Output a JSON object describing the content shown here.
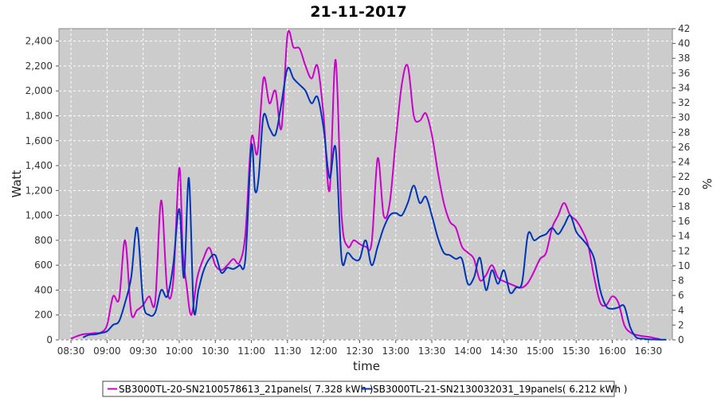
{
  "chart_data": {
    "type": "line",
    "title": "21-11-2017",
    "xlabel": "time",
    "ylabel": "Watt",
    "y2label": "%",
    "x_ticks": [
      "08:30",
      "09:00",
      "09:30",
      "10:00",
      "10:30",
      "11:00",
      "11:30",
      "12:00",
      "12:30",
      "13:00",
      "13:30",
      "14:00",
      "14:30",
      "15:00",
      "15:30",
      "16:00",
      "16:30"
    ],
    "xlim": [
      "08:20",
      "16:50"
    ],
    "ylim": [
      0,
      2500
    ],
    "y_ticks": [
      0,
      200,
      400,
      600,
      800,
      1000,
      1200,
      1400,
      1600,
      1800,
      2000,
      2200,
      2400
    ],
    "y_tick_labels": [
      "0",
      "200",
      "400",
      "600",
      "800",
      "1,000",
      "1,200",
      "1,400",
      "1,600",
      "1,800",
      "2,000",
      "2,200",
      "2,400"
    ],
    "y2lim": [
      0,
      42
    ],
    "y2_ticks": [
      0,
      2,
      4,
      6,
      8,
      10,
      12,
      14,
      16,
      18,
      20,
      22,
      24,
      26,
      28,
      30,
      32,
      34,
      36,
      38,
      40,
      42
    ],
    "grid": true,
    "legend_position": "bottom",
    "background_color": "#cccccc",
    "series": [
      {
        "name": "SB3000TL-20-SN2100578613_21panels( 7.328 kWh )",
        "color": "#cc00cc",
        "x": [
          "08:30",
          "08:35",
          "08:40",
          "08:45",
          "08:50",
          "08:55",
          "09:00",
          "09:05",
          "09:10",
          "09:15",
          "09:20",
          "09:25",
          "09:30",
          "09:35",
          "09:40",
          "09:45",
          "09:50",
          "09:55",
          "10:00",
          "10:03",
          "10:06",
          "10:10",
          "10:15",
          "10:20",
          "10:25",
          "10:30",
          "10:35",
          "10:40",
          "10:45",
          "10:50",
          "10:55",
          "11:00",
          "11:05",
          "11:10",
          "11:15",
          "11:20",
          "11:25",
          "11:30",
          "11:35",
          "11:40",
          "11:45",
          "11:50",
          "11:55",
          "12:00",
          "12:05",
          "12:10",
          "12:15",
          "12:20",
          "12:25",
          "12:30",
          "12:35",
          "12:40",
          "12:45",
          "12:50",
          "12:55",
          "13:00",
          "13:05",
          "13:10",
          "13:15",
          "13:20",
          "13:25",
          "13:30",
          "13:35",
          "13:40",
          "13:45",
          "13:50",
          "13:55",
          "14:00",
          "14:05",
          "14:10",
          "14:15",
          "14:20",
          "14:25",
          "14:30",
          "14:35",
          "14:40",
          "14:45",
          "14:50",
          "14:55",
          "15:00",
          "15:05",
          "15:10",
          "15:15",
          "15:20",
          "15:25",
          "15:30",
          "15:35",
          "15:40",
          "15:45",
          "15:50",
          "15:55",
          "16:00",
          "16:05",
          "16:10",
          "16:15",
          "16:20",
          "16:25",
          "16:30",
          "16:35",
          "16:40"
        ],
        "y": [
          10,
          30,
          45,
          50,
          55,
          60,
          120,
          350,
          330,
          800,
          220,
          240,
          280,
          350,
          310,
          1120,
          400,
          470,
          1380,
          700,
          450,
          200,
          500,
          650,
          740,
          600,
          560,
          600,
          650,
          620,
          850,
          1620,
          1500,
          2100,
          1900,
          2000,
          1700,
          2450,
          2350,
          2340,
          2200,
          2100,
          2200,
          1800,
          1200,
          2250,
          1000,
          750,
          800,
          770,
          750,
          780,
          1460,
          1000,
          1100,
          1600,
          2050,
          2200,
          1800,
          1760,
          1820,
          1650,
          1350,
          1100,
          950,
          900,
          750,
          700,
          650,
          480,
          520,
          600,
          500,
          470,
          450,
          430,
          420,
          460,
          550,
          650,
          700,
          900,
          1000,
          1100,
          1000,
          960,
          880,
          760,
          500,
          300,
          280,
          350,
          300,
          120,
          60,
          40,
          30,
          25,
          15,
          5
        ],
        "y2_pct": [
          0.2,
          0.5,
          0.8,
          0.9,
          0.9,
          1,
          2,
          5.9,
          5.5,
          13.4,
          3.7,
          4,
          4.7,
          5.9,
          5.2,
          18.8,
          6.7,
          7.9,
          23.2,
          11.8,
          7.6,
          3.4,
          8.4,
          10.9,
          12.4,
          10.1,
          9.4,
          10.1,
          10.9,
          10.4,
          14.3,
          27.2,
          25.2,
          35.3,
          31.9,
          33.6,
          28.6,
          41.2,
          39.5,
          39.3,
          37,
          35.3,
          37,
          30.2,
          20.2,
          37.8,
          16.8,
          12.6,
          13.4,
          12.9,
          12.6,
          13.1,
          24.5,
          16.8,
          18.5,
          26.9,
          34.4,
          37,
          30.2,
          29.6,
          30.6,
          27.7,
          22.7,
          18.5,
          16,
          15.1,
          12.6,
          11.8,
          10.9,
          8.1,
          8.7,
          10.1,
          8.4,
          7.9,
          7.6,
          7.2,
          7.1,
          7.7,
          9.2,
          10.9,
          11.8,
          15.1,
          16.8,
          18.5,
          16.8,
          16.1,
          14.8,
          12.8,
          8.4,
          5,
          4.7,
          5.9,
          5,
          2,
          1,
          0.7,
          0.5,
          0.4,
          0.3,
          0.1
        ]
      },
      {
        "name": "SB3000TL-21-SN2130032031_19panels( 6.212 kWh )",
        "color": "#0033bb",
        "x": [
          "08:40",
          "08:45",
          "08:50",
          "08:55",
          "09:00",
          "09:05",
          "09:10",
          "09:15",
          "09:20",
          "09:25",
          "09:30",
          "09:35",
          "09:40",
          "09:45",
          "09:50",
          "09:55",
          "10:00",
          "10:04",
          "10:08",
          "10:12",
          "10:16",
          "10:20",
          "10:25",
          "10:30",
          "10:35",
          "10:40",
          "10:45",
          "10:50",
          "10:55",
          "11:00",
          "11:03",
          "11:06",
          "11:10",
          "11:15",
          "11:20",
          "11:25",
          "11:30",
          "11:35",
          "11:40",
          "11:45",
          "11:50",
          "11:55",
          "12:00",
          "12:05",
          "12:10",
          "12:15",
          "12:20",
          "12:25",
          "12:30",
          "12:35",
          "12:40",
          "12:45",
          "12:50",
          "12:55",
          "13:00",
          "13:05",
          "13:10",
          "13:15",
          "13:20",
          "13:25",
          "13:30",
          "13:35",
          "13:40",
          "13:45",
          "13:50",
          "13:55",
          "14:00",
          "14:05",
          "14:10",
          "14:15",
          "14:20",
          "14:25",
          "14:30",
          "14:35",
          "14:40",
          "14:45",
          "14:50",
          "14:55",
          "15:00",
          "15:05",
          "15:10",
          "15:15",
          "15:20",
          "15:25",
          "15:30",
          "15:35",
          "15:40",
          "15:45",
          "15:50",
          "15:55",
          "16:00",
          "16:05",
          "16:10",
          "16:15",
          "16:20",
          "16:25",
          "16:30",
          "16:35",
          "16:40",
          "16:45"
        ],
        "y": [
          20,
          40,
          45,
          55,
          70,
          120,
          150,
          300,
          500,
          900,
          300,
          200,
          220,
          400,
          350,
          600,
          1050,
          500,
          1300,
          250,
          400,
          550,
          650,
          680,
          540,
          580,
          570,
          600,
          650,
          1560,
          1200,
          1300,
          1800,
          1700,
          1650,
          1900,
          2180,
          2100,
          2050,
          2000,
          1900,
          1950,
          1700,
          1300,
          1540,
          650,
          700,
          650,
          650,
          800,
          600,
          750,
          900,
          1000,
          1020,
          1000,
          1100,
          1240,
          1100,
          1150,
          1000,
          820,
          700,
          680,
          650,
          650,
          450,
          500,
          660,
          400,
          560,
          450,
          560,
          380,
          420,
          460,
          850,
          800,
          830,
          850,
          900,
          850,
          920,
          1000,
          870,
          810,
          750,
          650,
          400,
          270,
          250,
          260,
          270,
          100,
          20,
          10,
          5,
          3,
          2,
          1
        ],
        "y2_pct": [
          0.3,
          0.7,
          0.8,
          0.9,
          1.2,
          2,
          2.5,
          5,
          8.4,
          15.1,
          5,
          3.4,
          3.7,
          6.7,
          5.9,
          10.1,
          17.6,
          8.4,
          21.8,
          4.2,
          6.7,
          9.2,
          10.9,
          11.4,
          9.1,
          9.7,
          9.6,
          10.1,
          10.9,
          26.2,
          20.2,
          21.8,
          30.2,
          28.6,
          27.7,
          31.9,
          36.6,
          35.3,
          34.4,
          33.6,
          31.9,
          32.8,
          28.6,
          21.8,
          25.9,
          10.9,
          11.8,
          10.9,
          10.9,
          13.4,
          10.1,
          12.6,
          15.1,
          16.8,
          17.1,
          16.8,
          18.5,
          20.8,
          18.5,
          19.3,
          16.8,
          13.8,
          11.8,
          11.4,
          10.9,
          10.9,
          7.6,
          8.4,
          11.1,
          6.7,
          9.4,
          7.6,
          9.4,
          6.4,
          7.1,
          7.7,
          14.3,
          13.4,
          13.9,
          14.3,
          15.1,
          14.3,
          15.5,
          16.8,
          14.6,
          13.6,
          12.6,
          10.9,
          6.7,
          4.5,
          4.2,
          4.4,
          4.5,
          1.7,
          0.3,
          0.2,
          0.1,
          0.1,
          0.1,
          0
        ]
      }
    ]
  }
}
